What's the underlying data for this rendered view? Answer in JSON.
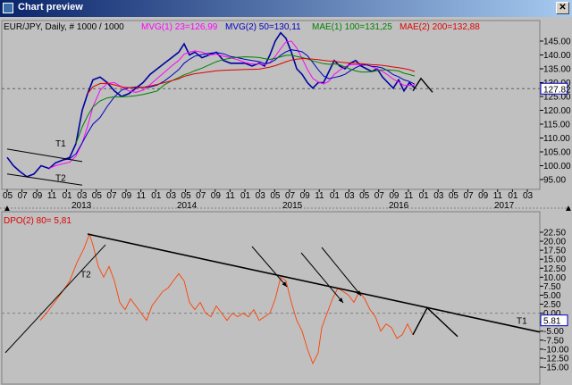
{
  "window": {
    "title": "Chart preview",
    "close_symbol": "✕"
  },
  "header": {
    "symbol": "EUR/JPY",
    "info": ", Daily, # 1000 / 1000",
    "indicators": [
      {
        "label": "MVG(1) 23=126,99",
        "color": "#ff00ff"
      },
      {
        "label": "MVG(2) 50=130,11",
        "color": "#0000c0"
      },
      {
        "label": "MAE(1) 100=131,25",
        "color": "#008000"
      },
      {
        "label": "MAE(2) 200=132,88",
        "color": "#e00000"
      }
    ]
  },
  "price_panel": {
    "y_ticks": [
      "145.00",
      "140.00",
      "135.00",
      "130.00",
      "125.00",
      "120.00",
      "115.00",
      "110.00",
      "105.00",
      "100.00",
      "95.00"
    ],
    "last_price": "127.82",
    "month_ticks": [
      "05",
      "07",
      "09",
      "11",
      "01",
      "03",
      "05",
      "07",
      "09",
      "11",
      "01",
      "03",
      "05",
      "07",
      "09",
      "11",
      "01",
      "03",
      "05",
      "07",
      "09",
      "11",
      "01",
      "03",
      "05",
      "07",
      "09",
      "11",
      "01",
      "03",
      "05",
      "07",
      "09",
      "11",
      "01",
      "03"
    ],
    "year_labels": [
      "2013",
      "2014",
      "2015",
      "2016",
      "2017"
    ],
    "trend_labels": [
      "T1",
      "T2"
    ]
  },
  "dpo_panel": {
    "title": "DPO(2) 80= 5,81",
    "title_color": "#e00000",
    "y_ticks": [
      "22.50",
      "20.00",
      "17.50",
      "15.00",
      "12.50",
      "10.00",
      "7.50",
      "5.00",
      "2.50",
      "0.00",
      "-2.50",
      "-5.00",
      "-7.50",
      "-10.00",
      "-12.50",
      "-15.00"
    ],
    "last_value": "5.81",
    "trend_labels": [
      "T2",
      "T1"
    ]
  },
  "colors": {
    "bg": "#c0c0c0",
    "candle": "#0000a0",
    "mvg1": "#ff00ff",
    "mvg2": "#0000c0",
    "mae1": "#008000",
    "mae2": "#e00000",
    "dpo": "#ff4000"
  }
}
